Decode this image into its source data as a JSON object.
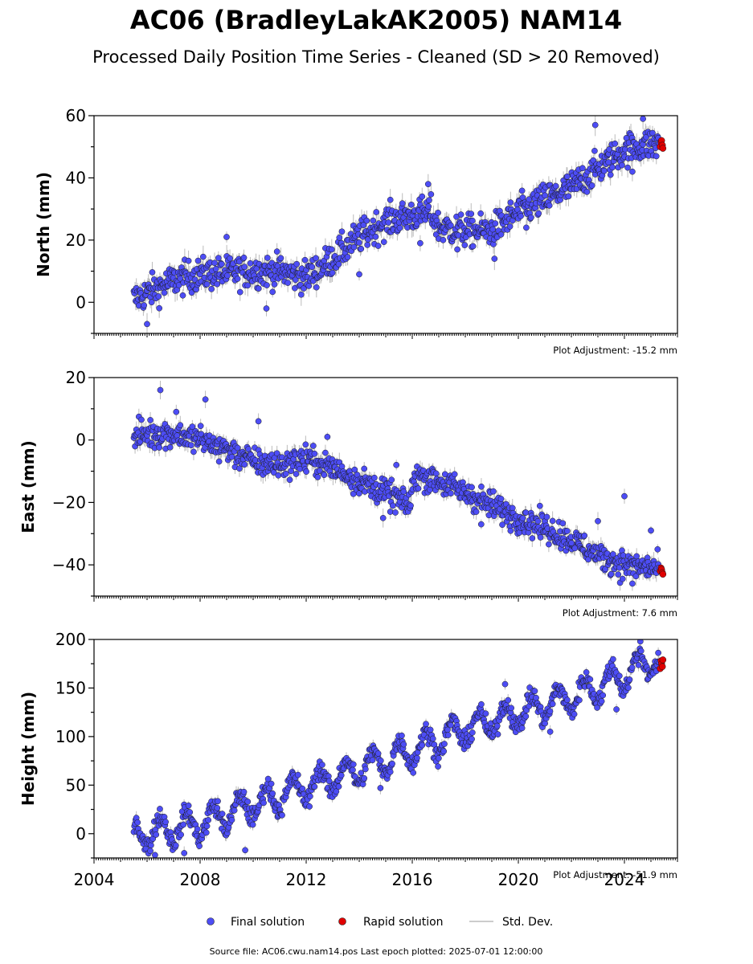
{
  "header": {
    "title": "AC06 (BradleyLakAK2005) NAM14",
    "subtitle": "Processed Daily Position Time Series - Cleaned (SD > 20 Removed)"
  },
  "footer": {
    "source": "Source file: AC06.cwu.nam14.pos  Last epoch plotted: 2025-07-01 12:00:00"
  },
  "colors": {
    "final": "#4d4df5",
    "rapid": "#e00000",
    "stddev": "#bbbbbb"
  },
  "chart_data": [
    {
      "type": "scatter",
      "ylabel": "North (mm)",
      "annotation": "Plot Adjustment: -15.2 mm",
      "xlim": [
        2004.0,
        2026.0
      ],
      "ylim": [
        -10,
        60
      ],
      "yticks": [
        0,
        20,
        40,
        60
      ],
      "ytick_labels": [
        "0",
        "20",
        "40",
        "60"
      ],
      "trend_x": [
        2005.5,
        2006.0,
        2007.0,
        2008.0,
        2009.0,
        2010.0,
        2011.0,
        2012.0,
        2013.0,
        2014.0,
        2015.0,
        2016.0,
        2016.7,
        2017.0,
        2018.0,
        2019.0,
        2020.0,
        2021.0,
        2022.0,
        2023.0,
        2024.0,
        2025.0,
        2025.4
      ],
      "trend_y": [
        1,
        3,
        7,
        9,
        9.5,
        10,
        10,
        8,
        14,
        21,
        26,
        28,
        29,
        24,
        23,
        23,
        29,
        33,
        37,
        43,
        49,
        51,
        50
      ],
      "noise": 2.6,
      "outliers": [
        [
          2006.0,
          -7
        ],
        [
          2009.0,
          21
        ],
        [
          2010.5,
          -2
        ],
        [
          2014.0,
          9
        ],
        [
          2016.6,
          38
        ],
        [
          2016.3,
          19
        ],
        [
          2017.7,
          17
        ],
        [
          2019.1,
          14
        ],
        [
          2020.3,
          24
        ],
        [
          2022.9,
          57
        ],
        [
          2024.7,
          59
        ],
        [
          2024.3,
          42
        ],
        [
          2023.4,
          45
        ]
      ],
      "rapid": [
        [
          2025.35,
          50
        ],
        [
          2025.38,
          51.5
        ],
        [
          2025.4,
          52
        ],
        [
          2025.43,
          50.5
        ],
        [
          2025.45,
          49.5
        ]
      ]
    },
    {
      "type": "scatter",
      "ylabel": "East (mm)",
      "annotation": "Plot Adjustment: 7.6 mm",
      "xlim": [
        2004.0,
        2026.0
      ],
      "ylim": [
        -50,
        20
      ],
      "yticks": [
        -40,
        -20,
        0,
        20
      ],
      "ytick_labels": [
        "−40",
        "−20",
        "0",
        "20"
      ],
      "trend_x": [
        2005.5,
        2006.0,
        2007.0,
        2008.0,
        2009.0,
        2010.0,
        2011.0,
        2012.0,
        2013.0,
        2014.0,
        2015.0,
        2015.9,
        2016.1,
        2017.0,
        2018.0,
        2019.0,
        2020.0,
        2021.0,
        2022.0,
        2023.0,
        2024.0,
        2025.0,
        2025.4
      ],
      "trend_y": [
        1,
        2,
        2,
        0,
        -3,
        -7,
        -8,
        -6,
        -9,
        -13,
        -17,
        -21,
        -11,
        -13,
        -17,
        -21,
        -25,
        -28,
        -32,
        -37,
        -40,
        -41,
        -42
      ],
      "noise": 2.2,
      "outliers": [
        [
          2006.5,
          16
        ],
        [
          2008.2,
          13
        ],
        [
          2007.1,
          9
        ],
        [
          2010.2,
          6
        ],
        [
          2012.8,
          1
        ],
        [
          2014.9,
          -25
        ],
        [
          2015.4,
          -8
        ],
        [
          2018.6,
          -27
        ],
        [
          2022.0,
          -33
        ],
        [
          2024.0,
          -18
        ],
        [
          2025.0,
          -29
        ],
        [
          2024.3,
          -46
        ],
        [
          2023.0,
          -26
        ]
      ],
      "rapid": [
        [
          2025.35,
          -42
        ],
        [
          2025.38,
          -41
        ],
        [
          2025.4,
          -41.5
        ],
        [
          2025.43,
          -42.5
        ],
        [
          2025.45,
          -43
        ]
      ]
    },
    {
      "type": "scatter",
      "ylabel": "Height (mm)",
      "annotation": "Plot Adjustment: -51.9 mm",
      "xlim": [
        2004.0,
        2026.0
      ],
      "ylim": [
        -25,
        200
      ],
      "yticks": [
        0,
        50,
        100,
        150,
        200
      ],
      "ytick_labels": [
        "0",
        "50",
        "100",
        "150",
        "200"
      ],
      "trend_x": [
        2005.5,
        2006.0,
        2008.0,
        2010.0,
        2012.0,
        2014.0,
        2016.0,
        2018.0,
        2020.0,
        2022.0,
        2024.0,
        2025.0,
        2025.4
      ],
      "trend_y": [
        0,
        1,
        10,
        30,
        48,
        66,
        86,
        107,
        124,
        140,
        163,
        180,
        175
      ],
      "seasonal": 14,
      "noise": 5,
      "outliers": [
        [
          2009.7,
          -17
        ],
        [
          2006.3,
          -22
        ],
        [
          2007.4,
          -20
        ],
        [
          2014.8,
          47
        ],
        [
          2019.5,
          154
        ],
        [
          2021.2,
          105
        ],
        [
          2023.7,
          128
        ],
        [
          2024.6,
          198
        ]
      ],
      "rapid": [
        [
          2025.35,
          170
        ],
        [
          2025.38,
          178
        ],
        [
          2025.4,
          175
        ],
        [
          2025.43,
          172
        ],
        [
          2025.45,
          179
        ]
      ]
    }
  ],
  "x_axis": {
    "ticks": [
      2004,
      2008,
      2012,
      2016,
      2020,
      2024
    ],
    "tick_labels": [
      "2004",
      "2008",
      "2012",
      "2016",
      "2020",
      "2024"
    ]
  },
  "legend": {
    "position": "bottom-center",
    "final_label": "Final solution",
    "rapid_label": "Rapid solution",
    "stddev_label": "Std. Dev."
  }
}
